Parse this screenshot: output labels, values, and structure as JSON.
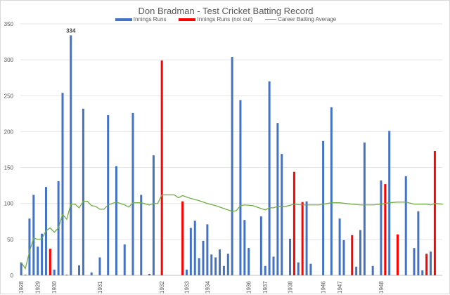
{
  "chart_data": {
    "type": "bar",
    "title": "Don Bradman - Test Cricket Batting Record",
    "legend": [
      {
        "label": "Innings Runs",
        "color": "#4472c4"
      },
      {
        "label": "Innings Runs (not out)",
        "color": "#ff0000"
      },
      {
        "label": "Career Batting Average",
        "color": "#70ad47"
      }
    ],
    "legend_position": "top",
    "ylim": [
      0,
      350
    ],
    "yticks": [
      0,
      50,
      100,
      150,
      200,
      250,
      300,
      350
    ],
    "slot_count": 102,
    "innings": [
      {
        "slot": 0,
        "runs": 18
      },
      {
        "slot": 1,
        "runs": 1
      },
      {
        "slot": 2,
        "runs": 79
      },
      {
        "slot": 3,
        "runs": 112
      },
      {
        "slot": 4,
        "runs": 40
      },
      {
        "slot": 5,
        "runs": 58
      },
      {
        "slot": 6,
        "runs": 123
      },
      {
        "slot": 7,
        "runs": 37,
        "not_out": true
      },
      {
        "slot": 8,
        "runs": 8
      },
      {
        "slot": 9,
        "runs": 131
      },
      {
        "slot": 10,
        "runs": 254
      },
      {
        "slot": 11,
        "runs": 1
      },
      {
        "slot": 12,
        "runs": 334
      },
      {
        "slot": 14,
        "runs": 14
      },
      {
        "slot": 15,
        "runs": 232
      },
      {
        "slot": 17,
        "runs": 4
      },
      {
        "slot": 19,
        "runs": 25
      },
      {
        "slot": 21,
        "runs": 223
      },
      {
        "slot": 23,
        "runs": 152
      },
      {
        "slot": 25,
        "runs": 43
      },
      {
        "slot": 27,
        "runs": 226
      },
      {
        "slot": 29,
        "runs": 112
      },
      {
        "slot": 31,
        "runs": 2
      },
      {
        "slot": 32,
        "runs": 167
      },
      {
        "slot": 34,
        "runs": 299,
        "not_out": true
      },
      {
        "slot": 39,
        "runs": 103,
        "not_out": true
      },
      {
        "slot": 40,
        "runs": 8
      },
      {
        "slot": 41,
        "runs": 66
      },
      {
        "slot": 42,
        "runs": 76
      },
      {
        "slot": 43,
        "runs": 24
      },
      {
        "slot": 44,
        "runs": 48
      },
      {
        "slot": 45,
        "runs": 71
      },
      {
        "slot": 46,
        "runs": 29
      },
      {
        "slot": 47,
        "runs": 25
      },
      {
        "slot": 48,
        "runs": 36
      },
      {
        "slot": 49,
        "runs": 13
      },
      {
        "slot": 50,
        "runs": 30
      },
      {
        "slot": 51,
        "runs": 304
      },
      {
        "slot": 53,
        "runs": 244
      },
      {
        "slot": 54,
        "runs": 77
      },
      {
        "slot": 55,
        "runs": 38
      },
      {
        "slot": 58,
        "runs": 82
      },
      {
        "slot": 59,
        "runs": 13
      },
      {
        "slot": 60,
        "runs": 270
      },
      {
        "slot": 61,
        "runs": 26
      },
      {
        "slot": 62,
        "runs": 212
      },
      {
        "slot": 63,
        "runs": 169
      },
      {
        "slot": 65,
        "runs": 51
      },
      {
        "slot": 66,
        "runs": 144,
        "not_out": true
      },
      {
        "slot": 67,
        "runs": 18
      },
      {
        "slot": 68,
        "runs": 102,
        "not_out": true
      },
      {
        "slot": 69,
        "runs": 103
      },
      {
        "slot": 70,
        "runs": 16
      },
      {
        "slot": 73,
        "runs": 187
      },
      {
        "slot": 75,
        "runs": 234
      },
      {
        "slot": 77,
        "runs": 79
      },
      {
        "slot": 78,
        "runs": 49
      },
      {
        "slot": 80,
        "runs": 56,
        "not_out": true
      },
      {
        "slot": 81,
        "runs": 12
      },
      {
        "slot": 82,
        "runs": 63
      },
      {
        "slot": 83,
        "runs": 185
      },
      {
        "slot": 85,
        "runs": 13
      },
      {
        "slot": 87,
        "runs": 132
      },
      {
        "slot": 88,
        "runs": 127,
        "not_out": true
      },
      {
        "slot": 89,
        "runs": 201
      },
      {
        "slot": 91,
        "runs": 57,
        "not_out": true
      },
      {
        "slot": 93,
        "runs": 138
      },
      {
        "slot": 95,
        "runs": 38
      },
      {
        "slot": 96,
        "runs": 89
      },
      {
        "slot": 97,
        "runs": 7
      },
      {
        "slot": 98,
        "runs": 30,
        "not_out": true
      },
      {
        "slot": 99,
        "runs": 33
      },
      {
        "slot": 100,
        "runs": 173,
        "not_out": true
      }
    ],
    "average": [
      [
        0,
        18
      ],
      [
        1,
        9.5
      ],
      [
        2,
        33
      ],
      [
        3,
        52
      ],
      [
        4,
        50
      ],
      [
        5,
        51
      ],
      [
        6,
        62
      ],
      [
        7,
        66
      ],
      [
        8,
        60
      ],
      [
        9,
        66
      ],
      [
        10,
        85
      ],
      [
        11,
        78
      ],
      [
        12,
        99
      ],
      [
        13,
        99
      ],
      [
        14,
        94
      ],
      [
        15,
        103
      ],
      [
        16,
        103
      ],
      [
        17,
        97
      ],
      [
        18,
        96
      ],
      [
        19,
        92
      ],
      [
        20,
        92
      ],
      [
        21,
        98
      ],
      [
        23,
        102
      ],
      [
        25,
        98
      ],
      [
        26,
        95
      ],
      [
        27,
        101
      ],
      [
        29,
        101
      ],
      [
        31,
        98
      ],
      [
        32,
        100
      ],
      [
        33,
        100
      ],
      [
        34,
        112
      ],
      [
        37,
        112
      ],
      [
        38,
        108
      ],
      [
        39,
        111
      ],
      [
        41,
        107
      ],
      [
        43,
        104
      ],
      [
        45,
        100
      ],
      [
        47,
        97
      ],
      [
        50,
        91
      ],
      [
        51,
        89
      ],
      [
        52,
        90
      ],
      [
        53,
        97
      ],
      [
        54,
        98
      ],
      [
        56,
        97
      ],
      [
        58,
        93
      ],
      [
        59,
        91
      ],
      [
        60,
        94
      ],
      [
        61,
        94
      ],
      [
        62,
        96
      ],
      [
        64,
        96
      ],
      [
        66,
        99
      ],
      [
        68,
        98
      ],
      [
        70,
        98
      ],
      [
        72,
        98
      ],
      [
        75,
        101
      ],
      [
        77,
        101
      ],
      [
        80,
        99
      ],
      [
        82,
        98
      ],
      [
        85,
        98
      ],
      [
        87,
        99
      ],
      [
        89,
        101
      ],
      [
        91,
        102
      ],
      [
        93,
        102
      ],
      [
        95,
        99
      ],
      [
        98,
        99
      ],
      [
        99,
        98
      ],
      [
        100,
        100
      ],
      [
        102,
        99
      ]
    ],
    "annotations": [
      {
        "slot": 12,
        "text": "334"
      }
    ],
    "x_year_labels": [
      {
        "slot": 0,
        "text": "1928"
      },
      {
        "slot": 4,
        "text": "1929"
      },
      {
        "slot": 8,
        "text": "1930"
      },
      {
        "slot": 19,
        "text": "1931"
      },
      {
        "slot": 34,
        "text": "1932"
      },
      {
        "slot": 40,
        "text": "1933"
      },
      {
        "slot": 45,
        "text": "1934"
      },
      {
        "slot": 55,
        "text": "1936"
      },
      {
        "slot": 59,
        "text": "1937"
      },
      {
        "slot": 65,
        "text": "1938"
      },
      {
        "slot": 73,
        "text": "1946"
      },
      {
        "slot": 77,
        "text": "1947"
      },
      {
        "slot": 87,
        "text": "1948"
      }
    ],
    "grid": true
  }
}
